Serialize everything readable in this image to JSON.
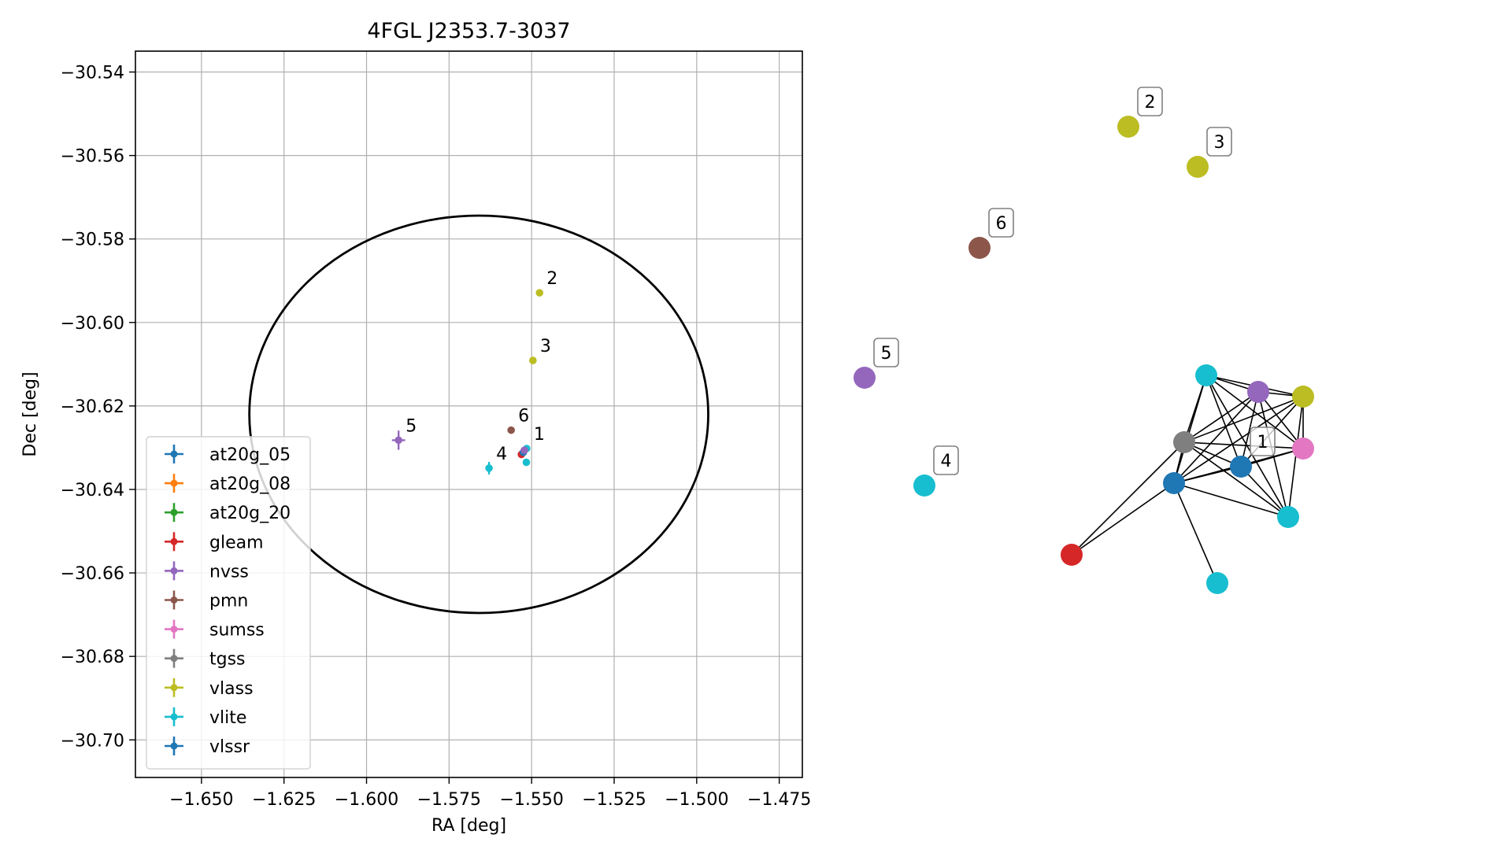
{
  "chart_data": [
    {
      "type": "scatter",
      "title": "4FGL J2353.7-3037",
      "xlabel": "RA [deg]",
      "ylabel": "Dec [deg]",
      "xlim": [
        -1.67,
        -1.468
      ],
      "ylim": [
        -30.709,
        -30.535
      ],
      "xticks": [
        -1.65,
        -1.625,
        -1.6,
        -1.575,
        -1.55,
        -1.525,
        -1.5,
        -1.475
      ],
      "xtick_labels": [
        "−1.650",
        "−1.625",
        "−1.600",
        "−1.575",
        "−1.550",
        "−1.525",
        "−1.500",
        "−1.475"
      ],
      "yticks": [
        -30.54,
        -30.56,
        -30.58,
        -30.6,
        -30.62,
        -30.64,
        -30.66,
        -30.68,
        -30.7
      ],
      "ytick_labels": [
        "−30.54",
        "−30.56",
        "−30.58",
        "−30.60",
        "−30.62",
        "−30.64",
        "−30.66",
        "−30.68",
        "−30.70"
      ],
      "grid": true,
      "legend_position": "lower-left",
      "legend": [
        {
          "name": "at20g_05",
          "color": "#1f77b4"
        },
        {
          "name": "at20g_08",
          "color": "#ff7f0e"
        },
        {
          "name": "at20g_20",
          "color": "#2ca02c"
        },
        {
          "name": "gleam",
          "color": "#d62728"
        },
        {
          "name": "nvss",
          "color": "#9467bd"
        },
        {
          "name": "pmn",
          "color": "#8c564b"
        },
        {
          "name": "sumss",
          "color": "#e377c2"
        },
        {
          "name": "tgss",
          "color": "#7f7f7f"
        },
        {
          "name": "vlass",
          "color": "#bcbd22"
        },
        {
          "name": "vlite",
          "color": "#17becf"
        },
        {
          "name": "vlssr",
          "color": "#1f77b4"
        }
      ],
      "ellipse": {
        "center": [
          -1.566,
          -30.622
        ],
        "semi_axis_ra": 0.0695,
        "semi_axis_dec": 0.0476,
        "color": "#000000"
      },
      "points": [
        {
          "x": -1.5476,
          "y": -30.5929,
          "color": "#bcbd22",
          "label": "2"
        },
        {
          "x": -1.5496,
          "y": -30.6091,
          "color": "#bcbd22",
          "label": "3"
        },
        {
          "x": -1.5562,
          "y": -30.6258,
          "color": "#8c564b",
          "label": "6"
        },
        {
          "x": -1.5903,
          "y": -30.6282,
          "color": "#9467bd",
          "label": "5",
          "xerr": 0.002,
          "yerr": 0.0023
        },
        {
          "x": -1.5629,
          "y": -30.6349,
          "color": "#17becf",
          "label": "4",
          "yerr": 0.0015
        },
        {
          "x": -1.5515,
          "y": -30.6302,
          "color": "#17becf",
          "label": "1"
        },
        {
          "x": -1.5516,
          "y": -30.6335,
          "color": "#17becf",
          "label": ""
        },
        {
          "x": -1.5531,
          "y": -30.6316,
          "color": "#d62728",
          "label": ""
        },
        {
          "x": -1.5525,
          "y": -30.6311,
          "color": "#1f77b4",
          "label": ""
        },
        {
          "x": -1.5522,
          "y": -30.6306,
          "color": "#9467bd",
          "label": ""
        }
      ]
    },
    {
      "type": "network",
      "nodes": [
        {
          "id": "2",
          "label": "2",
          "color": "#bcbd22"
        },
        {
          "id": "3",
          "label": "3",
          "color": "#bcbd22"
        },
        {
          "id": "6",
          "label": "6",
          "color": "#8c564b"
        },
        {
          "id": "5",
          "label": "5",
          "color": "#9467bd"
        },
        {
          "id": "4",
          "label": "4",
          "color": "#17becf"
        },
        {
          "id": "1",
          "label": "1",
          "color": "#1f77b4"
        },
        {
          "id": "va",
          "label": "",
          "color": "#17becf"
        },
        {
          "id": "nv",
          "label": "",
          "color": "#9467bd"
        },
        {
          "id": "vl",
          "label": "",
          "color": "#bcbd22"
        },
        {
          "id": "tg",
          "label": "",
          "color": "#7f7f7f"
        },
        {
          "id": "su",
          "label": "",
          "color": "#e377c2"
        },
        {
          "id": "at",
          "label": "",
          "color": "#1f77b4"
        },
        {
          "id": "vb",
          "label": "",
          "color": "#17becf"
        },
        {
          "id": "gl",
          "label": "",
          "color": "#d62728"
        },
        {
          "id": "vc",
          "label": "",
          "color": "#17becf"
        }
      ],
      "edges": [
        [
          "va",
          "nv"
        ],
        [
          "va",
          "vl"
        ],
        [
          "va",
          "tg"
        ],
        [
          "va",
          "at"
        ],
        [
          "va",
          "1"
        ],
        [
          "va",
          "su"
        ],
        [
          "va",
          "vb"
        ],
        [
          "nv",
          "vl"
        ],
        [
          "nv",
          "tg"
        ],
        [
          "nv",
          "at"
        ],
        [
          "nv",
          "1"
        ],
        [
          "nv",
          "su"
        ],
        [
          "nv",
          "vb"
        ],
        [
          "vl",
          "tg"
        ],
        [
          "vl",
          "at"
        ],
        [
          "vl",
          "1"
        ],
        [
          "vl",
          "su"
        ],
        [
          "vl",
          "vb"
        ],
        [
          "tg",
          "su"
        ],
        [
          "tg",
          "1"
        ],
        [
          "tg",
          "at"
        ],
        [
          "tg",
          "vb"
        ],
        [
          "tg",
          "gl"
        ],
        [
          "su",
          "1"
        ],
        [
          "su",
          "at"
        ],
        [
          "1",
          "at"
        ],
        [
          "1",
          "vb"
        ],
        [
          "at",
          "vb"
        ],
        [
          "at",
          "gl"
        ],
        [
          "at",
          "vc"
        ]
      ]
    }
  ]
}
